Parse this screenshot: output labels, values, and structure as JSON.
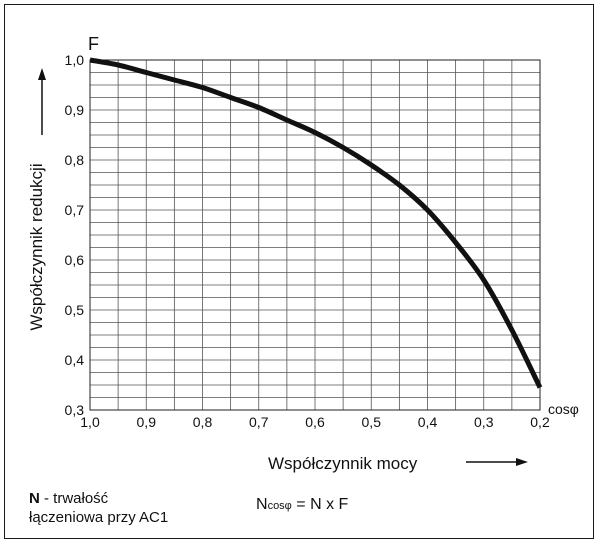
{
  "chart_data": {
    "type": "line",
    "title": "",
    "xlabel": "Współczynnik mocy",
    "xlabel_unit": "cosφ",
    "ylabel": "Współczynnik redukcji",
    "ylabel_unit": "F",
    "x_reversed": true,
    "xlim": [
      1.0,
      0.2
    ],
    "ylim": [
      0.3,
      1.0
    ],
    "x_ticks": [
      "1,0",
      "0,9",
      "0,8",
      "0,7",
      "0,6",
      "0,5",
      "0,4",
      "0,3",
      "0,2"
    ],
    "y_ticks": [
      "0,3",
      "0,4",
      "0,5",
      "0,6",
      "0,7",
      "0,8",
      "0,9",
      "1,0"
    ],
    "grid": true,
    "series": [
      {
        "x": [
          1.0,
          0.95,
          0.9,
          0.85,
          0.8,
          0.75,
          0.7,
          0.65,
          0.6,
          0.55,
          0.5,
          0.45,
          0.4,
          0.35,
          0.3,
          0.25,
          0.2
        ],
        "y": [
          1.0,
          0.99,
          0.975,
          0.96,
          0.945,
          0.925,
          0.905,
          0.88,
          0.855,
          0.825,
          0.79,
          0.75,
          0.7,
          0.635,
          0.56,
          0.46,
          0.345
        ],
        "color": "#111111"
      }
    ]
  },
  "legend_note": {
    "n_symbol": "N",
    "n_description_line1": " - trwałość",
    "n_description_line2": "łączeniowa przy AC1",
    "formula_n": "N",
    "formula_sub": "cosφ",
    "formula_rest": " = N x F"
  }
}
